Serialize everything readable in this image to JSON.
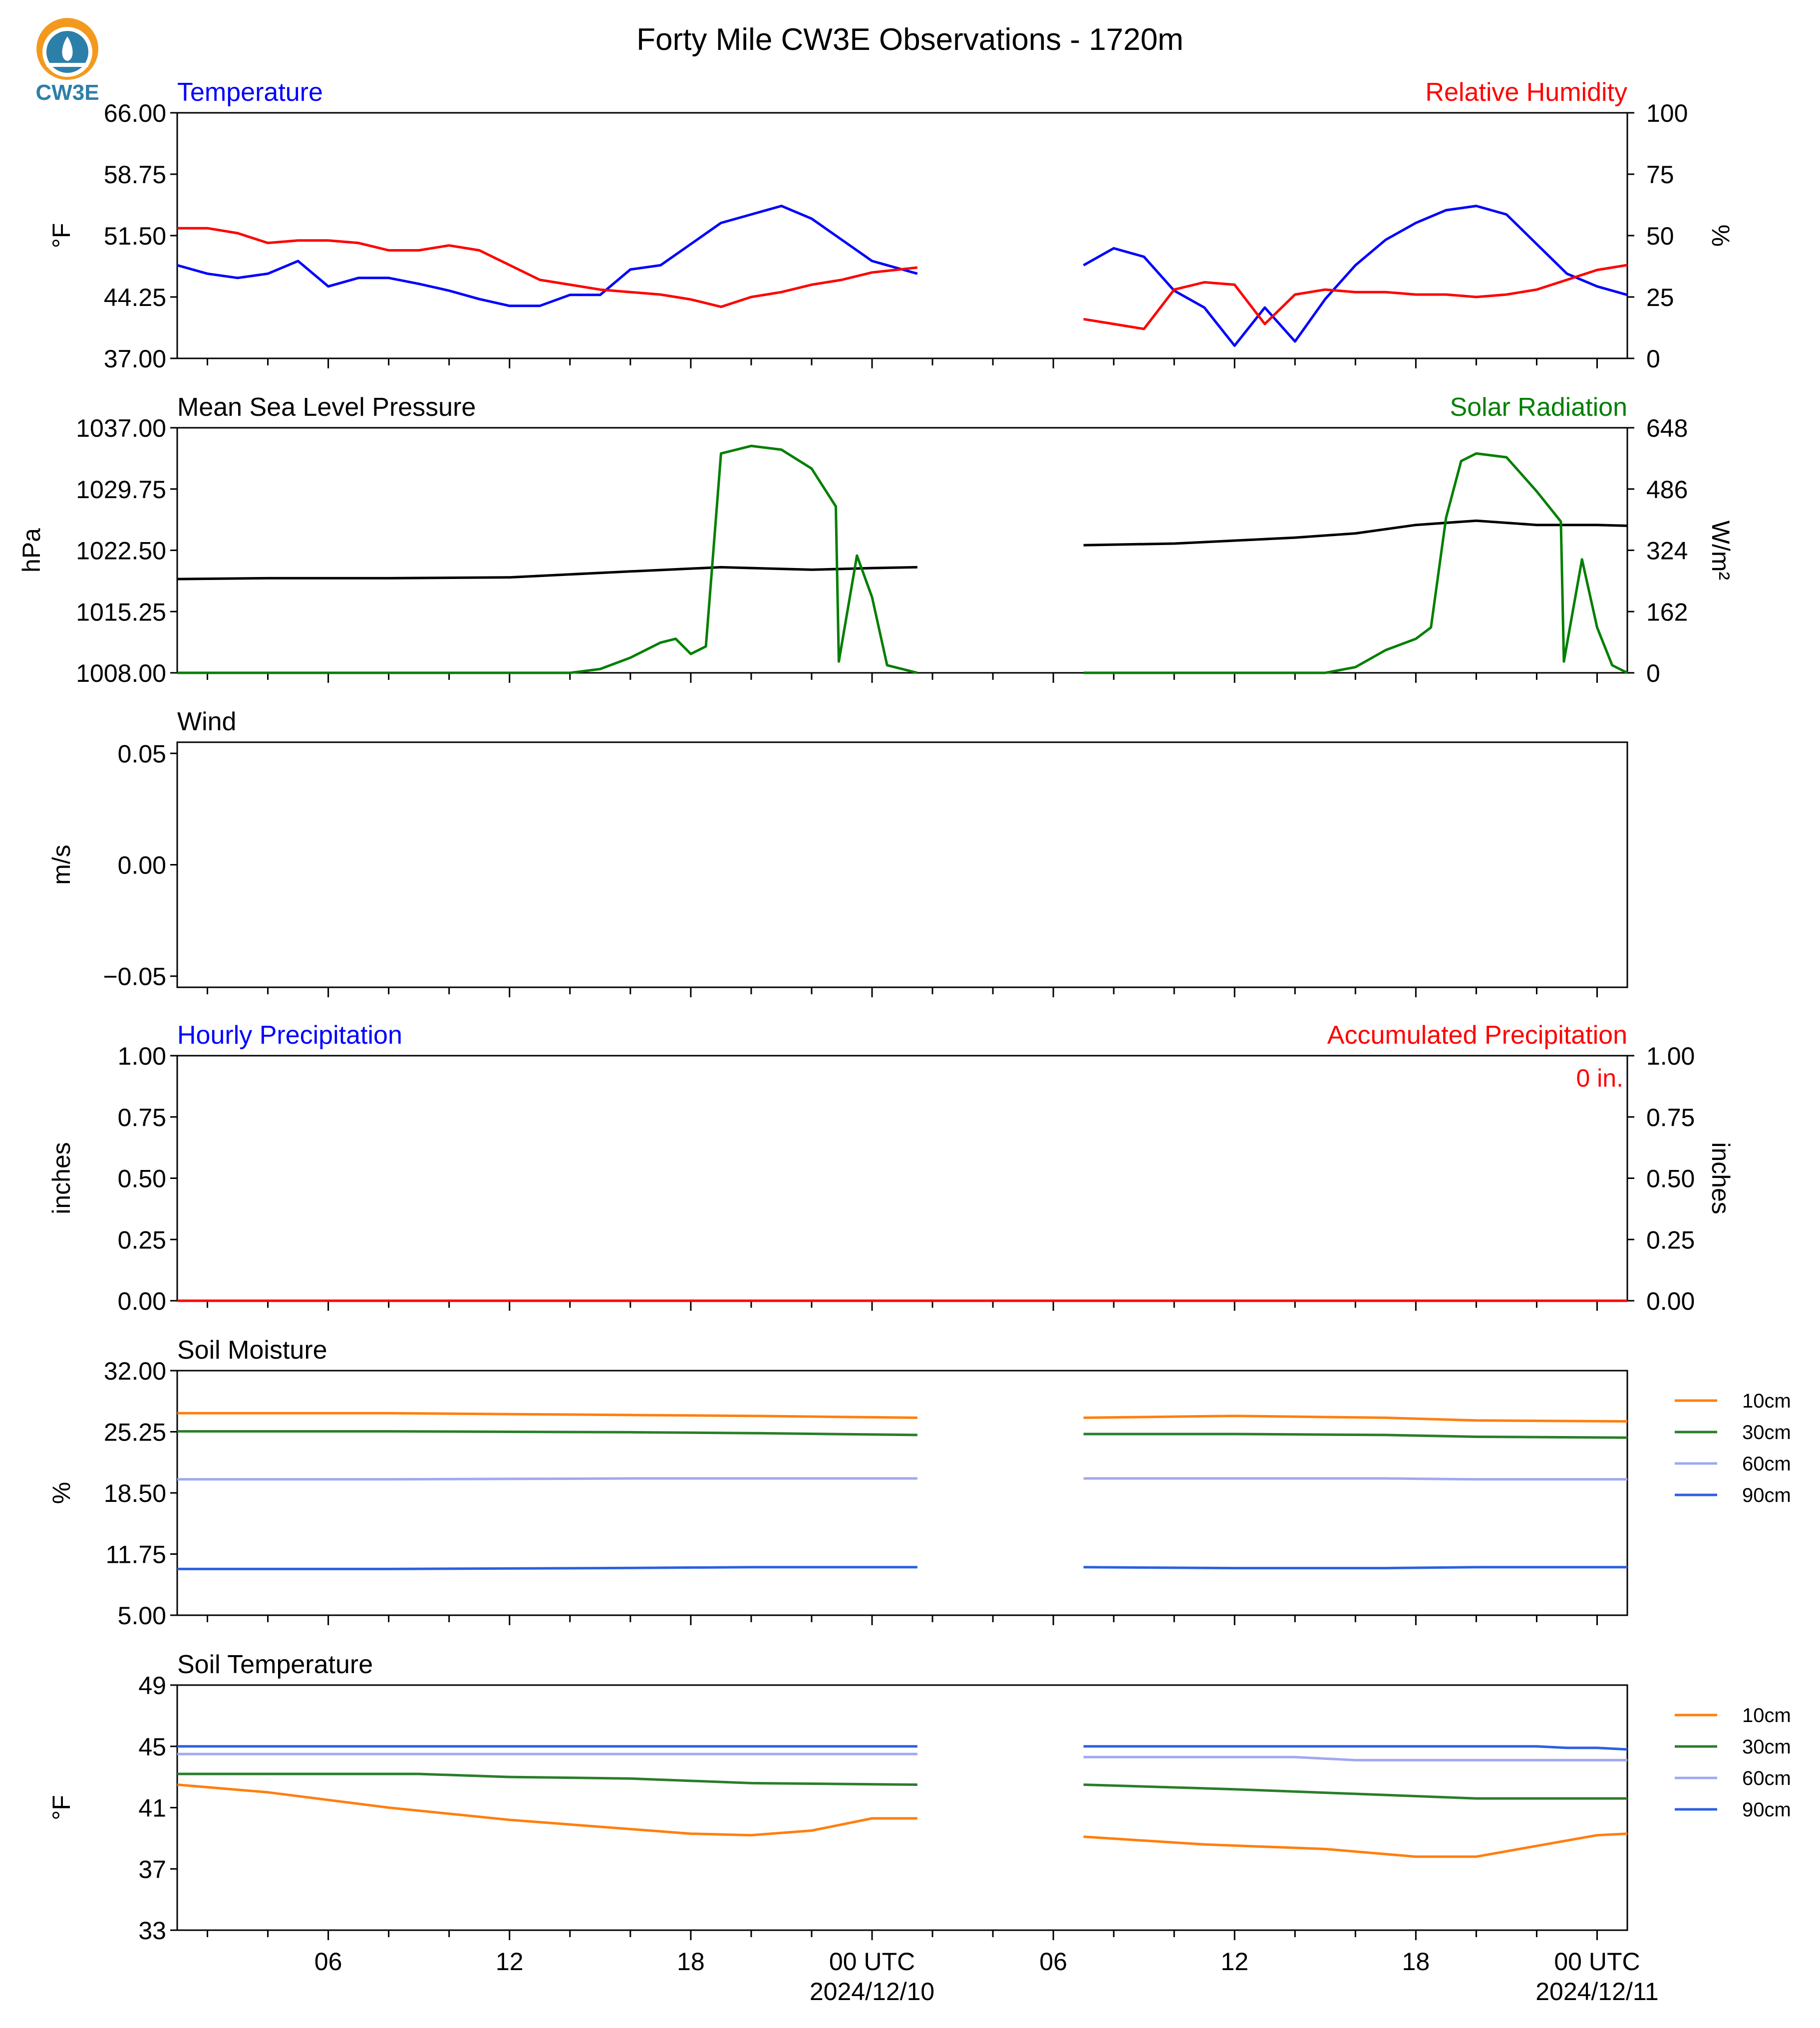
{
  "title": "Forty Mile CW3E Observations - 1720m",
  "logo_text": "CW3E",
  "colors": {
    "temp": "#0000ff",
    "rh": "#ff0000",
    "pressure": "#000000",
    "solar": "#007f00",
    "accum": "#ff0000",
    "s10": "#ff7f0e",
    "s30": "#2a7d2a",
    "s60": "#a0a8f0",
    "s90": "#2b60e0",
    "text": "#000000"
  },
  "x_axis": {
    "tick_labels": [
      "06",
      "12",
      "18",
      "00 UTC",
      "06",
      "12",
      "18",
      "00 UTC"
    ],
    "tick_hours": [
      6,
      12,
      18,
      24,
      30,
      36,
      42,
      48
    ],
    "date_labels": [
      "2024/12/10",
      "2024/12/11"
    ],
    "date_hours": [
      24,
      48
    ],
    "range_hours": [
      1,
      49
    ]
  },
  "panels": [
    {
      "id": "temperature",
      "left_title": "Temperature",
      "right_title": "Relative Humidity",
      "left_ylabel": "$^\\circ$F",
      "right_ylabel": "%",
      "left_ticks": [
        "37.00",
        "44.25",
        "51.50",
        "58.75",
        "66.00"
      ],
      "right_ticks": [
        "0",
        "25",
        "50",
        "75",
        "100"
      ]
    },
    {
      "id": "pressure",
      "left_title": "Mean Sea Level Pressure",
      "right_title": "Solar Radiation",
      "left_ylabel": "hPa",
      "right_ylabel": "W/m²",
      "left_ticks": [
        "1008.00",
        "1015.25",
        "1022.50",
        "1029.75",
        "1037.00"
      ],
      "right_ticks": [
        "0",
        "162",
        "324",
        "486",
        "648"
      ]
    },
    {
      "id": "wind",
      "left_title": "Wind",
      "right_title": "",
      "left_ylabel": "m/s",
      "right_ylabel": "",
      "left_ticks": [
        "−0.05",
        "0.00",
        "0.05"
      ],
      "right_ticks": []
    },
    {
      "id": "precip",
      "left_title": "Hourly Precipitation",
      "right_title": "Accumulated Precipitation",
      "left_ylabel": "inches",
      "right_ylabel": "inches",
      "left_ticks": [
        "0.00",
        "0.25",
        "0.50",
        "0.75",
        "1.00"
      ],
      "right_ticks": [
        "0.00",
        "0.25",
        "0.50",
        "0.75",
        "1.00"
      ],
      "annotation": "0 in."
    },
    {
      "id": "soil_moisture",
      "left_title": "Soil Moisture",
      "right_title": "",
      "left_ylabel": "%",
      "right_ylabel": "",
      "left_ticks": [
        "5.00",
        "11.75",
        "18.50",
        "25.25",
        "32.00"
      ],
      "right_ticks": [],
      "legend": [
        "10cm",
        "30cm",
        "60cm",
        "90cm"
      ]
    },
    {
      "id": "soil_temp",
      "left_title": "Soil Temperature",
      "right_title": "",
      "left_ylabel": "$^\\circ$F",
      "right_ylabel": "",
      "left_ticks": [
        "33",
        "37",
        "41",
        "45",
        "49"
      ],
      "right_ticks": [],
      "legend": [
        "10cm",
        "30cm",
        "60cm",
        "90cm"
      ]
    }
  ],
  "chart_data": [
    {
      "type": "line",
      "title": "Temperature",
      "ylabel": "°F",
      "ylim": [
        37,
        66
      ],
      "x_unit": "hours since 2024/12/09 00 UTC",
      "series": [
        {
          "name": "Temperature",
          "axis": "left",
          "x": [
            1,
            2,
            3,
            4,
            5,
            6,
            7,
            8,
            9,
            10,
            11,
            12,
            13,
            14,
            15,
            16,
            17,
            18,
            19,
            20,
            21,
            22,
            23,
            24,
            25.5,
            null,
            31,
            32,
            33,
            34,
            35,
            36,
            37,
            38,
            39,
            40,
            41,
            42,
            43,
            44,
            45,
            46,
            47,
            48,
            49
          ],
          "values": [
            48,
            47,
            46.5,
            47,
            48.5,
            45.5,
            46.5,
            46.5,
            45.8,
            45,
            44,
            43.2,
            43.2,
            44.5,
            44.5,
            47.5,
            48,
            50.5,
            53,
            54,
            55,
            53.5,
            51,
            48.5,
            47,
            null,
            48,
            50,
            49,
            45,
            43,
            38.5,
            43,
            39,
            44,
            48,
            51,
            53,
            54.5,
            55,
            54,
            50.5,
            47,
            45.5,
            44.5
          ]
        },
        {
          "name": "Relative Humidity",
          "axis": "right",
          "x": [
            1,
            2,
            3,
            4,
            5,
            6,
            7,
            8,
            9,
            10,
            11,
            12,
            13,
            14,
            15,
            16,
            17,
            18,
            19,
            20,
            21,
            22,
            23,
            24,
            25.5,
            null,
            31,
            32,
            33,
            34,
            35,
            36,
            37,
            38,
            39,
            40,
            41,
            42,
            43,
            44,
            45,
            46,
            47,
            48,
            49
          ],
          "values": [
            53,
            53,
            51,
            47,
            48,
            48,
            47,
            44,
            44,
            46,
            44,
            38,
            32,
            30,
            28,
            27,
            26,
            24,
            21,
            25,
            27,
            30,
            32,
            35,
            37,
            null,
            16,
            14,
            12,
            28,
            31,
            30,
            14,
            26,
            28,
            27,
            27,
            26,
            26,
            25,
            26,
            28,
            32,
            36,
            38
          ]
        }
      ]
    },
    {
      "type": "line",
      "title": "Mean Sea Level Pressure",
      "ylabel": "hPa",
      "ylim": [
        1008,
        1037
      ],
      "series": [
        {
          "name": "Mean Sea Level Pressure",
          "axis": "left",
          "x": [
            1,
            4,
            8,
            12,
            16,
            19,
            22,
            24,
            25.5,
            null,
            31,
            34,
            38,
            40,
            42,
            44,
            46,
            48,
            49
          ],
          "values": [
            1019.1,
            1019.2,
            1019.2,
            1019.3,
            1020,
            1020.5,
            1020.2,
            1020.4,
            1020.5,
            null,
            1023.1,
            1023.3,
            1024,
            1024.5,
            1025.5,
            1026,
            1025.5,
            1025.5,
            1025.4
          ]
        },
        {
          "name": "Solar Radiation",
          "axis": "right",
          "x": [
            1,
            14,
            15,
            16,
            17,
            17.5,
            18,
            18.5,
            19,
            20,
            21,
            22,
            22.8,
            22.9,
            23.5,
            24,
            24.5,
            25.5,
            null,
            31,
            39,
            40,
            41,
            42,
            42.5,
            43,
            43.5,
            44,
            45,
            46,
            46.8,
            46.9,
            47.5,
            48,
            48.5,
            49
          ],
          "values": [
            0,
            0,
            10,
            40,
            80,
            90,
            50,
            70,
            580,
            600,
            590,
            540,
            440,
            30,
            310,
            200,
            20,
            0,
            null,
            0,
            0,
            15,
            60,
            90,
            120,
            410,
            560,
            580,
            570,
            480,
            400,
            30,
            300,
            120,
            20,
            0
          ]
        }
      ]
    },
    {
      "type": "line",
      "title": "Wind",
      "ylabel": "m/s",
      "ylim": [
        -0.055,
        0.055
      ],
      "series": []
    },
    {
      "type": "line",
      "title": "Hourly Precipitation",
      "ylabel": "inches",
      "ylim": [
        0,
        1
      ],
      "series": [
        {
          "name": "Hourly Precipitation",
          "axis": "left",
          "x": [
            1,
            49
          ],
          "values": [
            0,
            0
          ]
        },
        {
          "name": "Accumulated Precipitation",
          "axis": "right",
          "x": [
            1,
            49
          ],
          "values": [
            0,
            0
          ]
        }
      ]
    },
    {
      "type": "line",
      "title": "Soil Moisture",
      "ylabel": "%",
      "ylim": [
        5,
        32
      ],
      "series": [
        {
          "name": "10cm",
          "x": [
            1,
            8,
            16,
            20,
            25.5,
            null,
            31,
            36,
            41,
            44,
            49
          ],
          "values": [
            27.3,
            27.3,
            27.1,
            27,
            26.8,
            null,
            26.8,
            27,
            26.8,
            26.5,
            26.4
          ]
        },
        {
          "name": "30cm",
          "x": [
            1,
            8,
            16,
            20,
            25.5,
            null,
            31,
            36,
            41,
            44,
            49
          ],
          "values": [
            25.3,
            25.3,
            25.2,
            25.1,
            24.9,
            null,
            25,
            25,
            24.9,
            24.7,
            24.6
          ]
        },
        {
          "name": "60cm",
          "x": [
            1,
            8,
            16,
            20,
            25.5,
            null,
            31,
            36,
            41,
            44,
            49
          ],
          "values": [
            20,
            20,
            20.1,
            20.1,
            20.1,
            null,
            20.1,
            20.1,
            20.1,
            20,
            20
          ]
        },
        {
          "name": "90cm",
          "x": [
            1,
            8,
            15,
            20,
            25.5,
            null,
            31,
            36,
            41,
            44,
            49
          ],
          "values": [
            10.1,
            10.1,
            10.2,
            10.3,
            10.3,
            null,
            10.3,
            10.2,
            10.2,
            10.3,
            10.3
          ]
        }
      ]
    },
    {
      "type": "line",
      "title": "Soil Temperature",
      "ylabel": "°F",
      "ylim": [
        33,
        49
      ],
      "series": [
        {
          "name": "10cm",
          "x": [
            1,
            4,
            8,
            12,
            16,
            18,
            20,
            22,
            24,
            25.5,
            null,
            31,
            35,
            39,
            42,
            44,
            46,
            48,
            49
          ],
          "values": [
            42.5,
            42,
            41,
            40.2,
            39.6,
            39.3,
            39.2,
            39.5,
            40.3,
            40.3,
            null,
            39.1,
            38.6,
            38.3,
            37.8,
            37.8,
            38.5,
            39.2,
            39.3
          ]
        },
        {
          "name": "30cm",
          "x": [
            1,
            9,
            12,
            16,
            20,
            25.5,
            null,
            31,
            36,
            40,
            44,
            49
          ],
          "values": [
            43.2,
            43.2,
            43,
            42.9,
            42.6,
            42.5,
            null,
            42.5,
            42.2,
            41.9,
            41.6,
            41.6
          ]
        },
        {
          "name": "60cm",
          "x": [
            1,
            25.5,
            null,
            31,
            38,
            40,
            49
          ],
          "values": [
            44.5,
            44.5,
            null,
            44.3,
            44.3,
            44.1,
            44.1
          ]
        },
        {
          "name": "90cm",
          "x": [
            1,
            25.5,
            null,
            31,
            46,
            47,
            48,
            49
          ],
          "values": [
            45,
            45,
            null,
            45,
            45,
            44.9,
            44.9,
            44.8
          ]
        }
      ]
    }
  ]
}
